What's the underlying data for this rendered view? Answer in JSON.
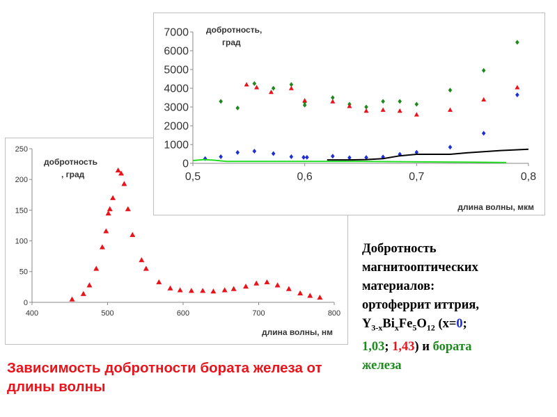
{
  "colors": {
    "red": "#e8141c",
    "green": "#1e8a1e",
    "blue": "#1f2fd6",
    "bright_green": "#22dd22",
    "black": "#000000"
  },
  "chart_data": [
    {
      "type": "scatter",
      "title": "",
      "annotation": [
        "добротность",
        ", град"
      ],
      "xlabel": "длина волны, нм",
      "ylabel": "",
      "xlim": [
        400,
        800
      ],
      "ylim": [
        0,
        250
      ],
      "xticks": [
        "400",
        "500",
        "600",
        "700",
        "800"
      ],
      "yticks": [
        "0",
        "50",
        "100",
        "150",
        "200",
        "250"
      ],
      "grid": false,
      "series": [
        {
          "color": "#e8141c",
          "marker": "triangle",
          "x": [
            453,
            468,
            476,
            485,
            493,
            498,
            501,
            503,
            507,
            514,
            518,
            522,
            527,
            533,
            545,
            551,
            568,
            583,
            596,
            611,
            626,
            640,
            655,
            667,
            683,
            697,
            711,
            725,
            740,
            755,
            768,
            781
          ],
          "y": [
            5,
            14,
            28,
            55,
            90,
            116,
            145,
            152,
            170,
            215,
            210,
            193,
            152,
            110,
            69,
            55,
            33,
            23,
            20,
            19,
            19,
            18,
            20,
            22,
            26,
            31,
            33,
            28,
            22,
            15,
            11,
            8
          ]
        }
      ]
    },
    {
      "type": "scatter",
      "title": "",
      "annotation": [
        "добротность,",
        "град"
      ],
      "xlabel": "длина волны, мкм",
      "ylabel": "",
      "xlim": [
        0.5,
        0.8
      ],
      "ylim": [
        0,
        7000
      ],
      "xticks": [
        "0,5",
        "0,6",
        "0,7",
        "0,8"
      ],
      "yticks": [
        "0",
        "1000",
        "2000",
        "3000",
        "4000",
        "5000",
        "6000",
        "7000"
      ],
      "grid": false,
      "series": [
        {
          "color": "#1e8a1e",
          "marker": "diamond",
          "x": [
            0.525,
            0.54,
            0.555,
            0.572,
            0.588,
            0.6,
            0.6,
            0.625,
            0.64,
            0.655,
            0.67,
            0.685,
            0.7,
            0.73,
            0.76,
            0.79
          ],
          "y": [
            3300,
            2950,
            4250,
            4000,
            4200,
            3100,
            3250,
            3500,
            3150,
            3000,
            3300,
            3300,
            3150,
            3900,
            4950,
            6450
          ]
        },
        {
          "color": "#e8141c",
          "marker": "triangle",
          "x": [
            0.548,
            0.557,
            0.57,
            0.588,
            0.6,
            0.625,
            0.64,
            0.655,
            0.67,
            0.685,
            0.7,
            0.73,
            0.76,
            0.79
          ],
          "y": [
            4200,
            4050,
            3800,
            4000,
            3350,
            3300,
            3050,
            2800,
            2850,
            2800,
            2600,
            2850,
            3400,
            4050
          ]
        },
        {
          "color": "#1f2fd6",
          "marker": "diamond",
          "x": [
            0.511,
            0.525,
            0.54,
            0.555,
            0.572,
            0.588,
            0.599,
            0.602,
            0.625,
            0.64,
            0.655,
            0.67,
            0.685,
            0.7,
            0.73,
            0.76,
            0.79
          ],
          "y": [
            250,
            350,
            580,
            650,
            520,
            350,
            320,
            320,
            380,
            300,
            310,
            340,
            480,
            590,
            860,
            1600,
            3650
          ]
        },
        {
          "color": "#000000",
          "marker": "line",
          "x": [
            0.62,
            0.64,
            0.655,
            0.67,
            0.685,
            0.7,
            0.715,
            0.73,
            0.745,
            0.76,
            0.775,
            0.8
          ],
          "y": [
            180,
            180,
            200,
            250,
            400,
            480,
            480,
            480,
            560,
            620,
            680,
            750
          ]
        },
        {
          "color": "#22dd22",
          "marker": "line",
          "x": [
            0.5,
            0.51,
            0.52,
            0.53,
            0.55,
            0.6,
            0.65,
            0.7,
            0.75,
            0.78
          ],
          "y": [
            150,
            200,
            160,
            100,
            100,
            100,
            100,
            80,
            60,
            40
          ]
        }
      ]
    }
  ],
  "captions": {
    "left": "Зависимость добротности бората железа от длины волны",
    "right": {
      "line1": "Добротность",
      "line2": "магнитооптических",
      "line3": "материалов:",
      "line4": "ортоферрит иттрия,",
      "formula": {
        "y": "Y",
        "y_sub": "3-x",
        "bi": "Bi",
        "bi_sub": "x",
        "fe": "Fe",
        "fe_sub": "5",
        "o": "O",
        "o_sub": "12",
        "x_open": "(x=",
        "x0": "0",
        "sep": ";"
      },
      "x1": "1,03",
      "sep2": ";",
      "x2": "1,43",
      "close": ")",
      "and": "и",
      "borate": "бората",
      "iron": "железа"
    }
  }
}
